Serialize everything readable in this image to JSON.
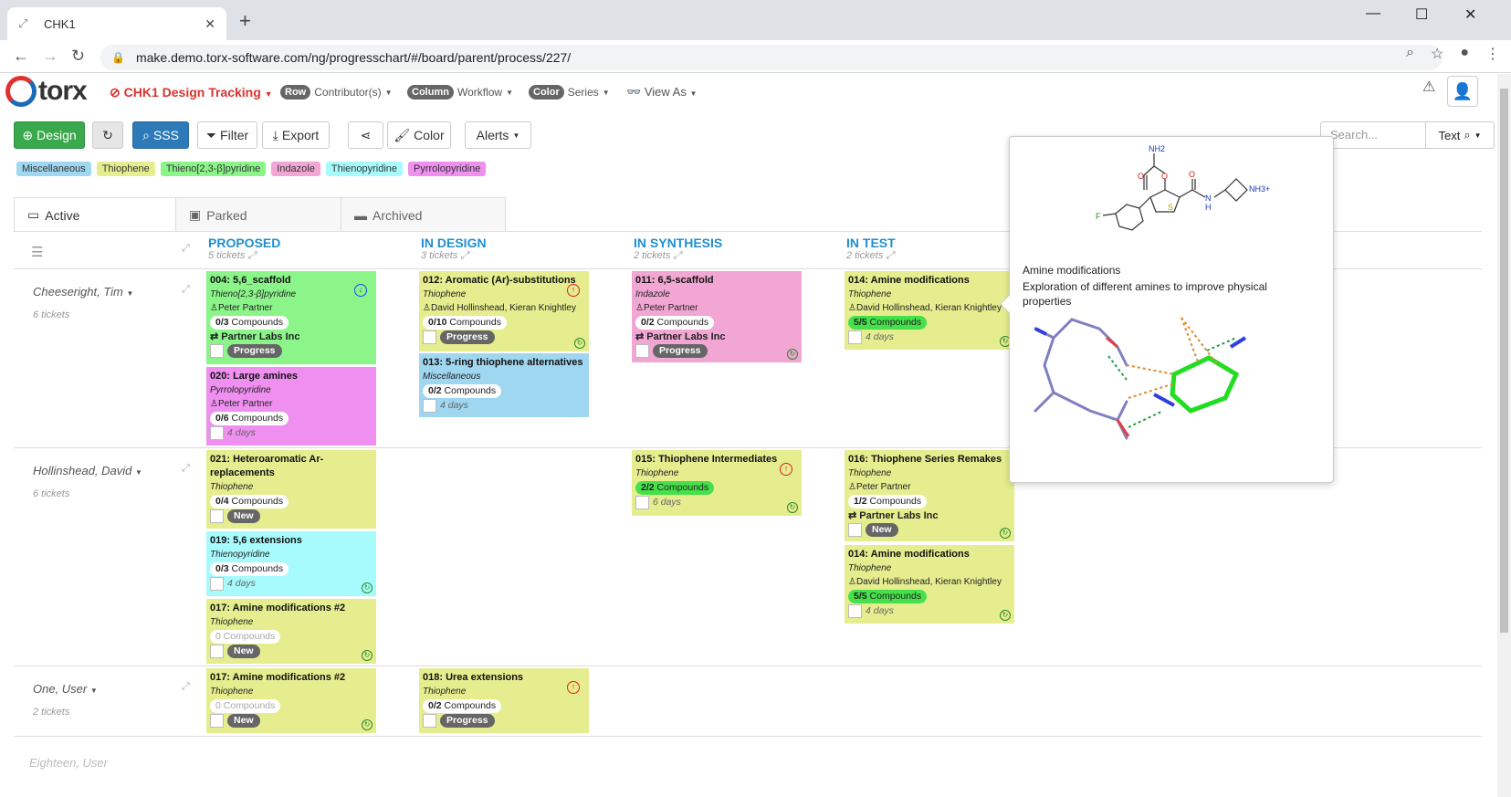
{
  "browser": {
    "tab_title": "CHK1",
    "url": "make.demo.torx-software.com/ng/progresschart/#/board/parent/process/227/"
  },
  "header": {
    "logo": "torx",
    "project": "CHK1 Design Tracking",
    "row": {
      "label": "Row",
      "value": "Contributor(s)"
    },
    "column": {
      "label": "Column",
      "value": "Workflow"
    },
    "color": {
      "label": "Color",
      "value": "Series"
    },
    "view_as": "View As"
  },
  "toolbar": {
    "design": "Design",
    "sss": "SSS",
    "filter": "Filter",
    "export": "Export",
    "color": "Color",
    "alerts": "Alerts",
    "search_placeholder": "Search...",
    "search_mode": "Text"
  },
  "legend": [
    {
      "label": "Miscellaneous",
      "color": "#9fd6f0"
    },
    {
      "label": "Thiophene",
      "color": "#e5ed8e"
    },
    {
      "label": "Thieno[2,3-β]pyridine",
      "color": "#8bf58a"
    },
    {
      "label": "Indazole",
      "color": "#f2a6d3"
    },
    {
      "label": "Thienopyridine",
      "color": "#a7fbfd"
    },
    {
      "label": "Pyrrolopyridine",
      "color": "#ef8ff0"
    }
  ],
  "tabs": {
    "active": "Active",
    "parked": "Parked",
    "archived": "Archived"
  },
  "columns": [
    {
      "name": "PROPOSED",
      "count": "5 tickets"
    },
    {
      "name": "IN DESIGN",
      "count": "3 tickets"
    },
    {
      "name": "IN SYNTHESIS",
      "count": "2 tickets"
    },
    {
      "name": "IN TEST",
      "count": "2 tickets"
    }
  ],
  "rows": [
    {
      "name": "Cheeseright, Tim",
      "count": "6 tickets"
    },
    {
      "name": "Hollinshead, David",
      "count": "6 tickets"
    },
    {
      "name": "One, User",
      "count": "2 tickets"
    },
    {
      "name": "Eighteen, User"
    }
  ],
  "cards": {
    "c004": {
      "title": "004: 5,6_scaffold",
      "cat": "Thieno[2,3-β]pyridine",
      "who": "Peter Partner",
      "cmp": "0/3",
      "cmp_label": "Compounds",
      "partner": "Partner Labs Inc",
      "status": "Progress"
    },
    "c020": {
      "title": "020: Large amines",
      "cat": "Pyrrolopyridine",
      "who": "Peter Partner",
      "cmp": "0/6",
      "cmp_label": "Compounds",
      "days": "4 days"
    },
    "c012": {
      "title": "012: Aromatic (Ar)-substitutions",
      "cat": "Thiophene",
      "who": "David Hollinshead, Kieran Knightley",
      "cmp": "0/10",
      "cmp_label": "Compounds",
      "status": "Progress"
    },
    "c013": {
      "title": "013: 5-ring thiophene alternatives",
      "cat": "Miscellaneous",
      "cmp": "0/2",
      "cmp_label": "Compounds",
      "days": "4 days"
    },
    "c011": {
      "title": "011: 6,5-scaffold",
      "cat": "Indazole",
      "who": "Peter Partner",
      "cmp": "0/2",
      "cmp_label": "Compounds",
      "partner": "Partner Labs Inc",
      "status": "Progress"
    },
    "c014a": {
      "title": "014: Amine modifications",
      "cat": "Thiophene",
      "who": "David Hollinshead, Kieran Knightley",
      "cmp": "5/5",
      "cmp_label": "Compounds",
      "days": "4 days"
    },
    "c021": {
      "title": "021: Heteroaromatic Ar-replacements",
      "cat": "Thiophene",
      "cmp": "0/4",
      "cmp_label": "Compounds",
      "status": "New"
    },
    "c019": {
      "title": "019: 5,6 extensions",
      "cat": "Thienopyridine",
      "cmp": "0/3",
      "cmp_label": "Compounds",
      "days": "4 days"
    },
    "c017a": {
      "title": "017: Amine modifications #2",
      "cat": "Thiophene",
      "cmp": "0",
      "cmp_label": "Compounds",
      "status": "New"
    },
    "c015": {
      "title": "015: Thiophene Intermediates",
      "cat": "Thiophene",
      "cmp": "2/2",
      "cmp_label": "Compounds",
      "days": "6 days"
    },
    "c016": {
      "title": "016: Thiophene Series Remakes",
      "cat": "Thiophene",
      "who": "Peter Partner",
      "cmp": "1/2",
      "cmp_label": "Compounds",
      "partner": "Partner Labs Inc",
      "status": "New"
    },
    "c014b": {
      "title": "014: Amine modifications",
      "cat": "Thiophene",
      "who": "David Hollinshead, Kieran Knightley",
      "cmp": "5/5",
      "cmp_label": "Compounds",
      "days": "4 days"
    },
    "c017b": {
      "title": "017: Amine modifications #2",
      "cat": "Thiophene",
      "cmp": "0",
      "cmp_label": "Compounds",
      "status": "New"
    },
    "c018": {
      "title": "018: Urea extensions",
      "cat": "Thiophene",
      "cmp": "0/2",
      "cmp_label": "Compounds",
      "status": "Progress"
    }
  },
  "popover": {
    "title": "Amine modifications",
    "description": "Exploration of different amines to improve physical properties",
    "mol_labels": {
      "nh2": "NH2",
      "o1": "O",
      "o2": "O",
      "o3": "O",
      "s": "S",
      "f": "F",
      "nh": "N",
      "h": "H",
      "nh3": "NH3+"
    }
  }
}
